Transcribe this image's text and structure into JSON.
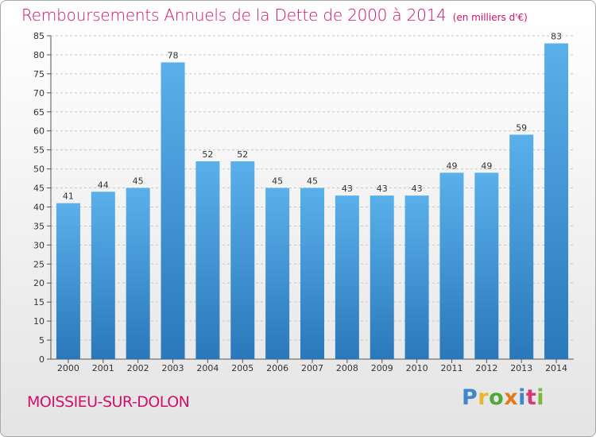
{
  "title": "Remboursements Annuels de la Dette de 2000 à 2014",
  "unit": "(en milliers d'€)",
  "town": "MOISSIEU-SUR-DOLON",
  "logo": {
    "letters": [
      "P",
      "r",
      "o",
      "x",
      "i",
      "t",
      "i"
    ],
    "colors": [
      "#3f87c8",
      "#e8b82a",
      "#4ea83c",
      "#e07c1c",
      "#3f87c8",
      "#d33a7a",
      "#7ab83a"
    ]
  },
  "colors": {
    "accent": "#d0106c",
    "bar_top": "#5ab0ea",
    "bar_bottom": "#2a78ba",
    "grid": "#c8c8c8",
    "axis_text": "#333333"
  },
  "chart_data": {
    "type": "bar",
    "categories": [
      "2000",
      "2001",
      "2002",
      "2003",
      "2004",
      "2005",
      "2006",
      "2007",
      "2008",
      "2009",
      "2010",
      "2011",
      "2012",
      "2013",
      "2014"
    ],
    "values": [
      41,
      44,
      45,
      78,
      52,
      52,
      45,
      45,
      43,
      43,
      43,
      49,
      49,
      59,
      83
    ],
    "data_labels": [
      "41",
      "44",
      "45",
      "78",
      "52",
      "52",
      "45",
      "45",
      "43",
      "43",
      "43",
      "49",
      "49",
      "59",
      "83"
    ],
    "y_ticks": [
      "0",
      "5",
      "10",
      "15",
      "20",
      "25",
      "30",
      "35",
      "40",
      "45",
      "50",
      "55",
      "60",
      "65",
      "70",
      "75",
      "80",
      "85"
    ],
    "ylim": [
      0,
      85
    ],
    "grid": "dashed-horizontal",
    "legend": "none"
  }
}
